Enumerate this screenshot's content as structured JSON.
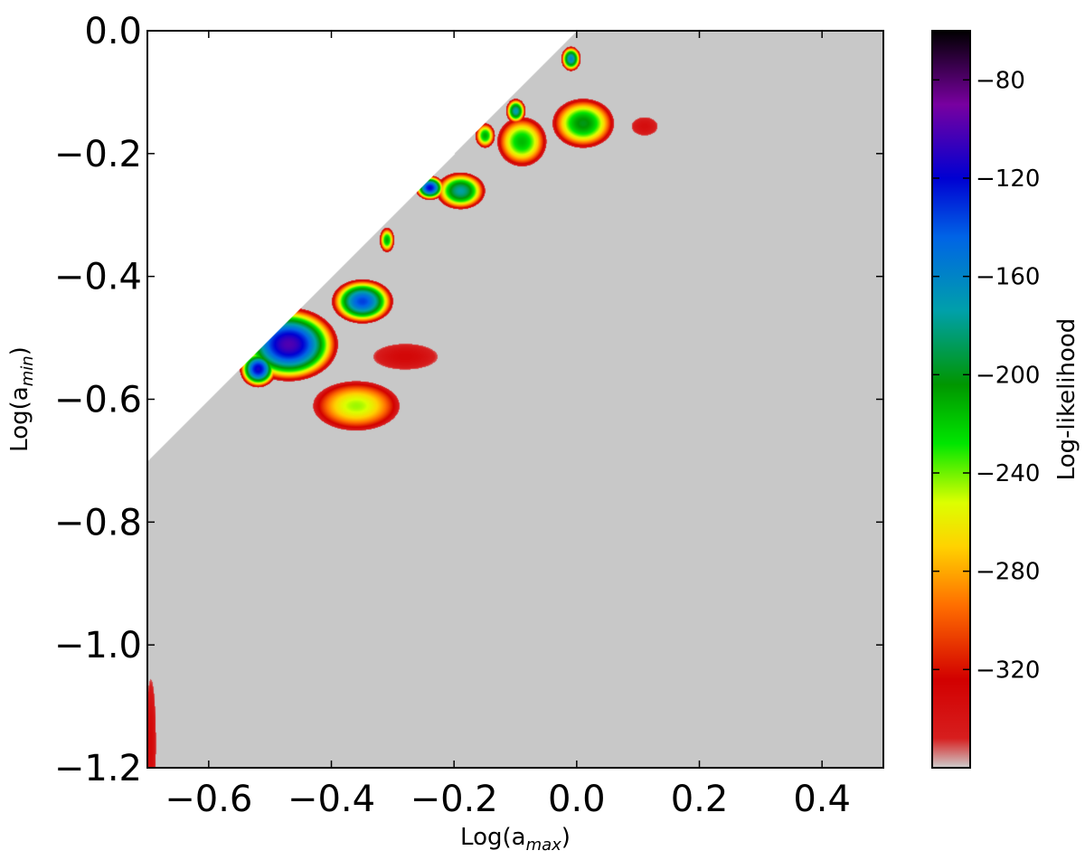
{
  "chart_data": {
    "type": "heatmap",
    "title": "",
    "xlabel": {
      "base": "Log(a",
      "sub": "max",
      "close": ")"
    },
    "ylabel": {
      "base": "Log(a",
      "sub": "min",
      "close": ")"
    },
    "xlim": [
      -0.7,
      0.5
    ],
    "ylim": [
      -1.2,
      0.0
    ],
    "x_ticks": [
      -0.6,
      -0.4,
      -0.2,
      0.0,
      0.2,
      0.4
    ],
    "x_tick_labels": [
      "−0.6",
      "−0.4",
      "−0.2",
      "0.0",
      "0.2",
      "0.4"
    ],
    "y_ticks": [
      0.0,
      -0.2,
      -0.4,
      -0.6,
      -0.8,
      -1.0,
      -1.2
    ],
    "y_tick_labels": [
      "0.0",
      "−0.2",
      "−0.4",
      "−0.6",
      "−0.8",
      "−1.0",
      "−1.2"
    ],
    "background_color": "#c8c8c8",
    "undefined_region": "Log(a_min) > Log(a_max) (white, upper-left triangle)",
    "colorbar": {
      "label": "Log-likelihood",
      "range": [
        -360,
        -60
      ],
      "ticks": [
        -80,
        -120,
        -160,
        -200,
        -240,
        -280,
        -320
      ],
      "tick_labels": [
        "−80",
        "−120",
        "−160",
        "−200",
        "−240",
        "−280",
        "−320"
      ],
      "colormap": "nipy_spectral_like"
    },
    "features": [
      {
        "x": -0.47,
        "y": -0.51,
        "sx": 0.04,
        "sy": 0.03,
        "peak": -100
      },
      {
        "x": -0.36,
        "y": -0.61,
        "sx": 0.035,
        "sy": 0.02,
        "peak": -245
      },
      {
        "x": -0.52,
        "y": -0.55,
        "sx": 0.015,
        "sy": 0.015,
        "peak": -115
      },
      {
        "x": -0.35,
        "y": -0.44,
        "sx": 0.025,
        "sy": 0.018,
        "peak": -135
      },
      {
        "x": -0.28,
        "y": -0.53,
        "sx": 0.025,
        "sy": 0.01,
        "peak": -330
      },
      {
        "x": -0.19,
        "y": -0.26,
        "sx": 0.02,
        "sy": 0.015,
        "peak": -175
      },
      {
        "x": -0.24,
        "y": -0.255,
        "sx": 0.012,
        "sy": 0.01,
        "peak": -120
      },
      {
        "x": 0.01,
        "y": -0.15,
        "sx": 0.025,
        "sy": 0.02,
        "peak": -200
      },
      {
        "x": -0.09,
        "y": -0.18,
        "sx": 0.02,
        "sy": 0.02,
        "peak": -215
      },
      {
        "x": -0.1,
        "y": -0.13,
        "sx": 0.008,
        "sy": 0.01,
        "peak": -170
      },
      {
        "x": -0.15,
        "y": -0.17,
        "sx": 0.008,
        "sy": 0.01,
        "peak": -210
      },
      {
        "x": -0.31,
        "y": -0.34,
        "sx": 0.006,
        "sy": 0.01,
        "peak": -210
      },
      {
        "x": -0.01,
        "y": -0.045,
        "sx": 0.008,
        "sy": 0.01,
        "peak": -160
      },
      {
        "x": 0.11,
        "y": -0.155,
        "sx": 0.01,
        "sy": 0.007,
        "peak": -335
      },
      {
        "x": -0.695,
        "y": -1.16,
        "sx": 0.004,
        "sy": 0.05,
        "peak": -330
      }
    ]
  }
}
